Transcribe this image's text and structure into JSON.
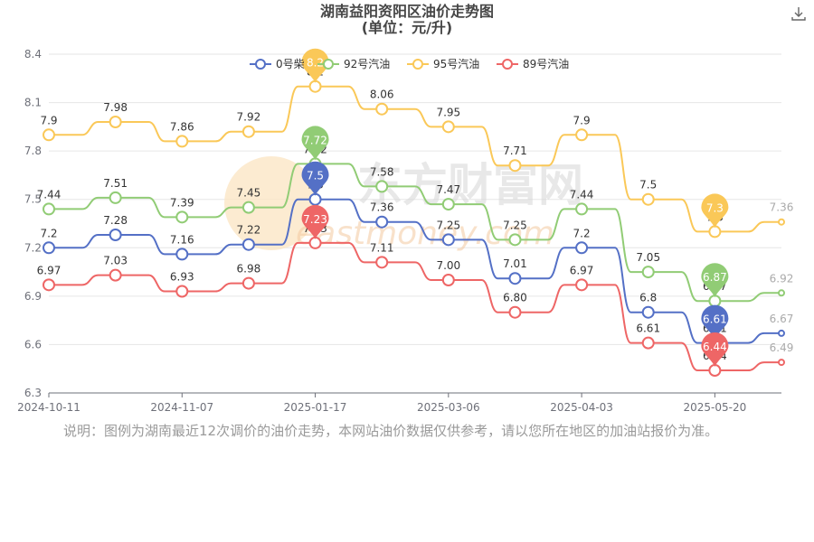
{
  "header": {
    "title": "湖南益阳资阳区油价走势图",
    "subtitle": "(单位：元/升)",
    "download_icon": "download-icon"
  },
  "note": "说明：图例为湖南最近12次调价的油价走势，本网站油价数据仅供参考，请以您所在地区的加油站报价为准。",
  "watermark": {
    "cn": "东方财富网",
    "en": "eastmoney.com"
  },
  "chart_data": {
    "type": "line",
    "ylim": [
      6.3,
      8.4
    ],
    "yticks": [
      "6.3",
      "6.6",
      "6.9",
      "7.2",
      "7.5",
      "7.8",
      "8.1",
      "8.4"
    ],
    "xticks": [
      "2024-10-11",
      "2024-11-07",
      "2025-01-17",
      "2025-03-06",
      "2025-04-03",
      "2025-05-20"
    ],
    "legend_position": "top",
    "series": [
      {
        "name": "0号柴油",
        "legend_label": "0号柴",
        "color": "#5470c6",
        "values": [
          7.2,
          7.28,
          7.16,
          7.22,
          7.5,
          7.36,
          7.25,
          7.01,
          7.2,
          6.8,
          6.61,
          6.67
        ],
        "labels": [
          "7.2",
          "7.28",
          "7.16",
          "7.22",
          "7.5",
          "7.36",
          "7.25",
          "7.01",
          "7.2",
          "6.8",
          "6.61",
          "6.67"
        ]
      },
      {
        "name": "92号汽油",
        "legend_label": "92号汽油",
        "color": "#91cc75",
        "values": [
          7.44,
          7.51,
          7.39,
          7.45,
          7.72,
          7.58,
          7.47,
          7.25,
          7.44,
          7.05,
          6.87,
          6.92
        ],
        "labels": [
          "7.44",
          "7.51",
          "7.39",
          "7.45",
          "7.72",
          "7.58",
          "7.47",
          "7.25",
          "7.44",
          "7.05",
          "6.87",
          "6.92"
        ]
      },
      {
        "name": "95号汽油",
        "legend_label": "95号汽油",
        "color": "#fac858",
        "values": [
          7.9,
          7.98,
          7.86,
          7.92,
          8.2,
          8.06,
          7.95,
          7.71,
          7.9,
          7.5,
          7.3,
          7.36
        ],
        "labels": [
          "7.9",
          "7.98",
          "7.86",
          "7.92",
          "8.2",
          "8.06",
          "7.95",
          "7.71",
          "7.9",
          "7.5",
          "7.3",
          "7.36"
        ]
      },
      {
        "name": "89号汽油",
        "legend_label": "89号汽油",
        "color": "#ee6666",
        "values": [
          6.97,
          7.03,
          6.93,
          6.98,
          7.23,
          7.11,
          7.0,
          6.8,
          6.97,
          6.61,
          6.44,
          6.49
        ],
        "labels": [
          "6.97",
          "7.03",
          "6.93",
          "6.98",
          "7.23",
          "7.11",
          "7.00",
          "6.80",
          "6.97",
          "6.61",
          "6.44",
          "6.49"
        ]
      }
    ],
    "max_pins": [
      {
        "series": 2,
        "index": 4,
        "label": "8.2"
      },
      {
        "series": 1,
        "index": 4,
        "label": "7.72"
      },
      {
        "series": 0,
        "index": 4,
        "label": "7.5"
      },
      {
        "series": 3,
        "index": 4,
        "label": "7.23"
      }
    ],
    "min_pins": [
      {
        "series": 2,
        "index": 10,
        "label": "7.3"
      },
      {
        "series": 1,
        "index": 10,
        "label": "6.87"
      },
      {
        "series": 0,
        "index": 10,
        "label": "6.61"
      },
      {
        "series": 3,
        "index": 10,
        "label": "6.44"
      }
    ]
  }
}
